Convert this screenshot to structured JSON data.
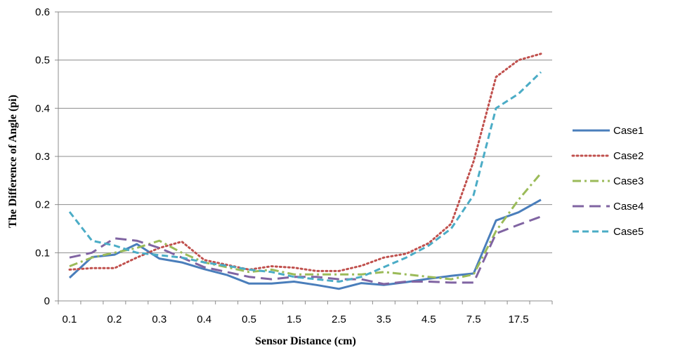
{
  "chart_data": {
    "type": "line",
    "title": "",
    "xlabel": "Sensor Distance (cm)",
    "ylabel": "The Difference of Angle (pi)",
    "ylim": [
      0,
      0.6
    ],
    "yticks": [
      "0",
      "0.1",
      "0.2",
      "0.3",
      "0.4",
      "0.5",
      "0.6"
    ],
    "xtick_labels": [
      "0.1",
      "0.2",
      "0.3",
      "0.4",
      "0.5",
      "1.5",
      "2.5",
      "3.5",
      "4.5",
      "7.5",
      "17.5"
    ],
    "grid": "horizontal",
    "legend_position": "right",
    "x": [
      "0.1",
      "0.15",
      "0.2",
      "0.25",
      "0.3",
      "0.35",
      "0.4",
      "0.45",
      "0.5",
      "1",
      "1.5",
      "2",
      "2.5",
      "3",
      "3.5",
      "4",
      "4.5",
      "5",
      "7.5",
      "12.5",
      "17.5",
      "22.5"
    ],
    "series": [
      {
        "name": "Case1",
        "color": "#4a7ebb",
        "dash": "solid",
        "values": [
          0.048,
          0.091,
          0.096,
          0.118,
          0.088,
          0.08,
          0.066,
          0.054,
          0.036,
          0.036,
          0.04,
          0.033,
          0.025,
          0.037,
          0.033,
          0.039,
          0.046,
          0.052,
          0.057,
          0.167,
          0.184,
          0.21
        ]
      },
      {
        "name": "Case2",
        "color": "#c0504d",
        "dash": "dotted",
        "values": [
          0.065,
          0.068,
          0.068,
          0.09,
          0.11,
          0.123,
          0.085,
          0.075,
          0.065,
          0.072,
          0.069,
          0.062,
          0.062,
          0.073,
          0.09,
          0.098,
          0.12,
          0.16,
          0.29,
          0.465,
          0.5,
          0.513
        ]
      },
      {
        "name": "Case3",
        "color": "#9bbb59",
        "dash": "dashdot",
        "values": [
          0.072,
          0.09,
          0.1,
          0.11,
          0.125,
          0.1,
          0.08,
          0.07,
          0.06,
          0.065,
          0.055,
          0.055,
          0.055,
          0.055,
          0.06,
          0.055,
          0.05,
          0.045,
          0.055,
          0.145,
          0.21,
          0.265
        ]
      },
      {
        "name": "Case4",
        "color": "#8064a2",
        "dash": "longdash",
        "values": [
          0.09,
          0.1,
          0.13,
          0.125,
          0.11,
          0.09,
          0.07,
          0.06,
          0.05,
          0.045,
          0.05,
          0.05,
          0.045,
          0.045,
          0.035,
          0.04,
          0.04,
          0.038,
          0.038,
          0.14,
          0.158,
          0.175
        ]
      },
      {
        "name": "Case5",
        "color": "#4bacc6",
        "dash": "dash",
        "values": [
          0.185,
          0.125,
          0.115,
          0.1,
          0.095,
          0.09,
          0.08,
          0.073,
          0.065,
          0.06,
          0.05,
          0.045,
          0.04,
          0.05,
          0.07,
          0.09,
          0.115,
          0.15,
          0.22,
          0.4,
          0.43,
          0.475
        ]
      }
    ]
  }
}
